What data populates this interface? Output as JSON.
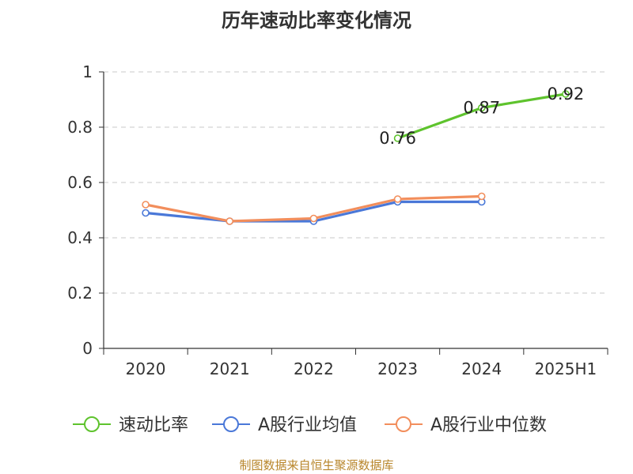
{
  "chart_data": {
    "type": "line",
    "title": "历年速动比率变化情况",
    "categories": [
      "2020",
      "2021",
      "2022",
      "2023",
      "2024",
      "2025H1"
    ],
    "ylim": [
      0,
      1
    ],
    "yticks": [
      0,
      0.2,
      0.4,
      0.6,
      0.8,
      1
    ],
    "ytick_labels": [
      "0",
      "0.2",
      "0.4",
      "0.6",
      "0.8",
      "1"
    ],
    "grid": true,
    "legend_position": "bottom",
    "series": [
      {
        "name": "速动比率",
        "color": "#5ec32d",
        "values": [
          null,
          null,
          null,
          0.76,
          0.87,
          0.92
        ],
        "labels": [
          "",
          "",
          "",
          "0.76",
          "0.87",
          "0.92"
        ]
      },
      {
        "name": "A股行业均值",
        "color": "#4a78d8",
        "values": [
          0.49,
          0.46,
          0.46,
          0.53,
          0.53,
          null
        ],
        "labels": []
      },
      {
        "name": "A股行业中位数",
        "color": "#f28e5c",
        "values": [
          0.52,
          0.46,
          0.47,
          0.54,
          0.55,
          null
        ],
        "labels": []
      }
    ]
  },
  "source": "制图数据来自恒生聚源数据库"
}
